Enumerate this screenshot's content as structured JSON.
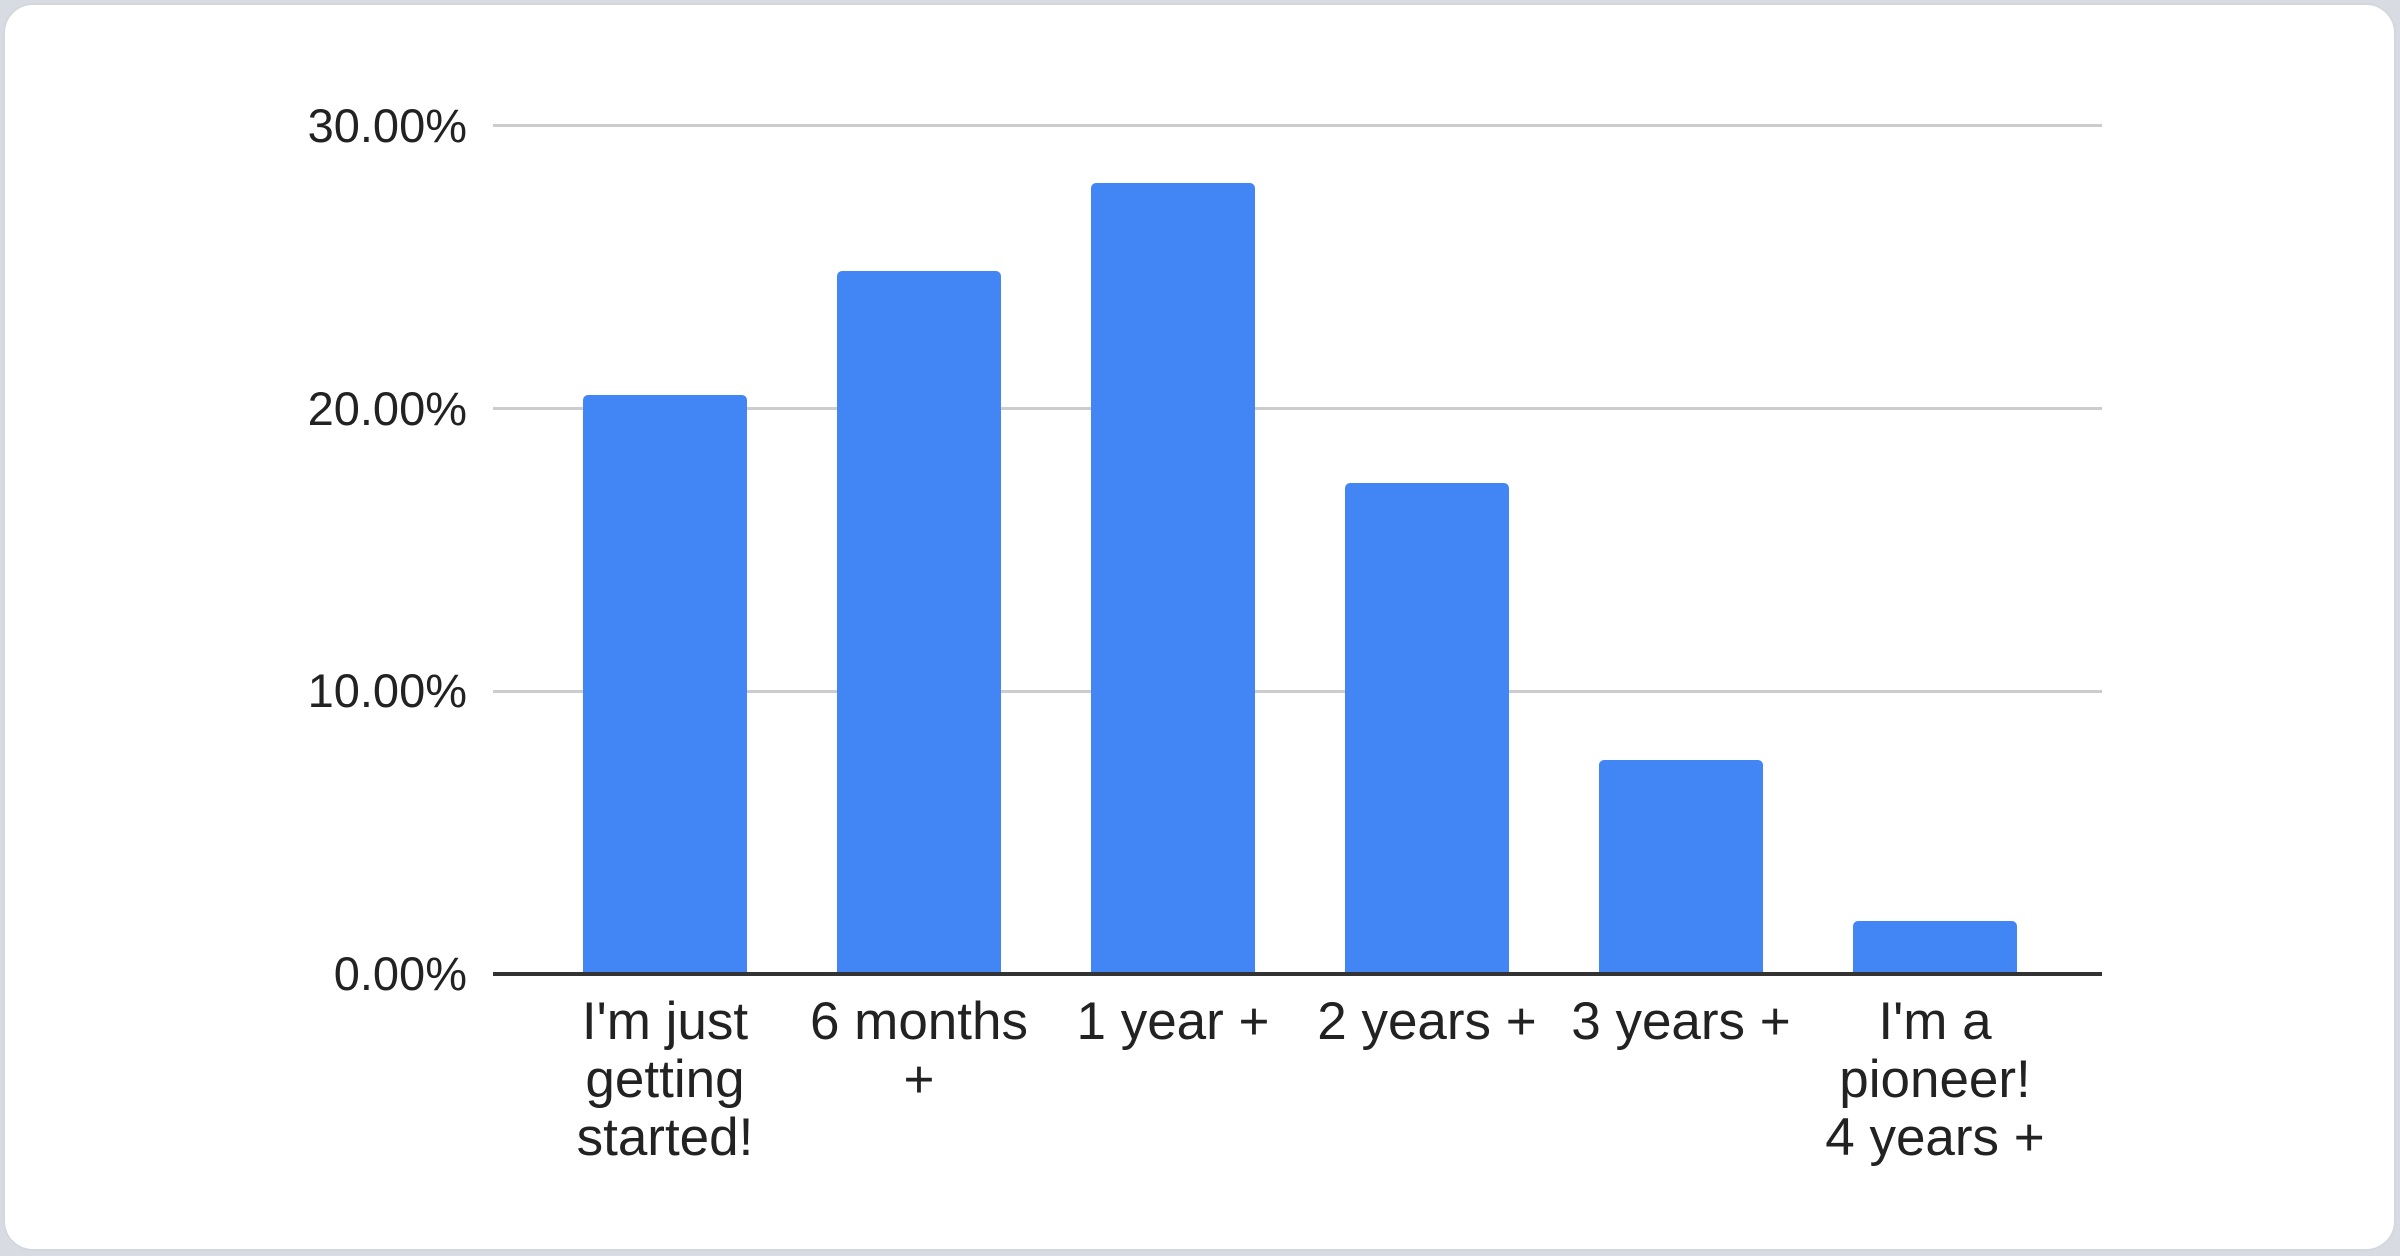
{
  "page": {
    "background_color": "#d8dce2",
    "card_background_color": "#ffffff"
  },
  "chart_data": {
    "type": "bar",
    "title": "",
    "categories": [
      "I'm just getting started!",
      "6 months +",
      "1 year +",
      "2 years +",
      "3 years +",
      "I'm a pioneer! 4 years +"
    ],
    "values": [
      20.4,
      24.8,
      27.9,
      17.3,
      7.5,
      1.8
    ],
    "unit": "%",
    "xlabel": "",
    "ylabel": "",
    "ylim": [
      0,
      30
    ],
    "grid": true,
    "legend": "none",
    "bar_color": "#4285f4",
    "grid_color": "#cccccc",
    "axis_color": "#333333",
    "label_color": "#222222",
    "y_ticks": [
      "0.00%",
      "10.00%",
      "20.00%",
      "30.00%"
    ],
    "y_tick_values": [
      0,
      10,
      20,
      30
    ],
    "x_tick_lines": [
      [
        "I'm just",
        "getting",
        "started!"
      ],
      [
        "6 months",
        "+"
      ],
      [
        "1 year +"
      ],
      [
        "2 years +"
      ],
      [
        "3 years +"
      ],
      [
        "I'm a",
        "pioneer!",
        "4 years +"
      ]
    ]
  }
}
